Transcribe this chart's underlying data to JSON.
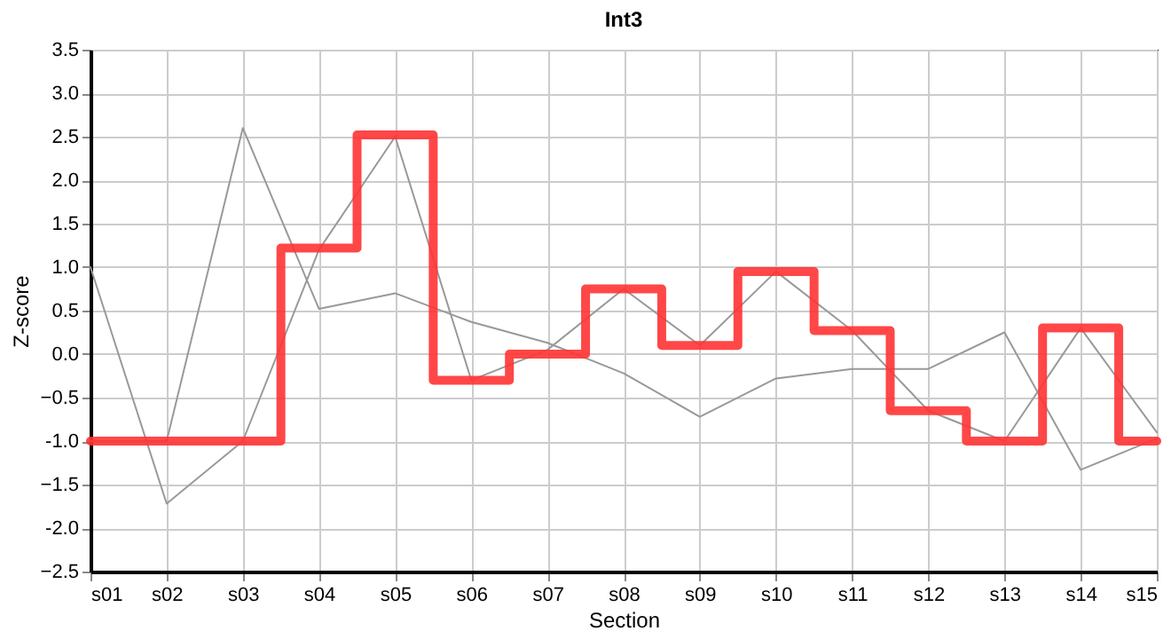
{
  "chart_data": {
    "type": "line",
    "title": "Int3",
    "xlabel": "Section",
    "ylabel": "Z-score",
    "categories": [
      "s01",
      "s02",
      "s03",
      "s04",
      "s05",
      "s06",
      "s07",
      "s08",
      "s09",
      "s10",
      "s11",
      "s12",
      "s13",
      "s14",
      "s15"
    ],
    "series": [
      {
        "color": "#999999",
        "values": [
          1.0,
          -1.72,
          -1.0,
          1.2,
          2.5,
          -0.3,
          0.05,
          0.75,
          0.1,
          0.95,
          0.27,
          -0.65,
          -1.0,
          0.3,
          -0.9
        ]
      },
      {
        "color": "#999999",
        "values": [
          -1.0,
          -1.0,
          2.6,
          0.52,
          0.7,
          0.37,
          0.13,
          -0.22,
          -0.72,
          -0.28,
          -0.17,
          -0.17,
          0.25,
          -1.33,
          -0.97
        ]
      },
      {
        "type": "step",
        "color": "#ff3333",
        "values": [
          -1.0,
          -1.0,
          -1.0,
          1.22,
          2.52,
          -0.3,
          0.0,
          0.75,
          0.1,
          0.95,
          0.27,
          -0.65,
          -1.0,
          0.3,
          -1.0
        ]
      }
    ],
    "ylim": [
      -2.5,
      3.5
    ],
    "yticks": [
      -2.5,
      {
        "value": -2,
        "label": "-2.0"
      },
      -1.5,
      {
        "value": -1,
        "label": "-1.0"
      },
      -0.5,
      {
        "value": 0,
        "label": "0.0"
      },
      0.5,
      {
        "value": 1,
        "label": "1.0"
      },
      1.5,
      {
        "value": 2,
        "label": "2.0"
      },
      2.5,
      {
        "value": 3,
        "label": "3.0"
      },
      3.5
    ],
    "grid": true,
    "marker": "none",
    "line_style": "solid"
  }
}
